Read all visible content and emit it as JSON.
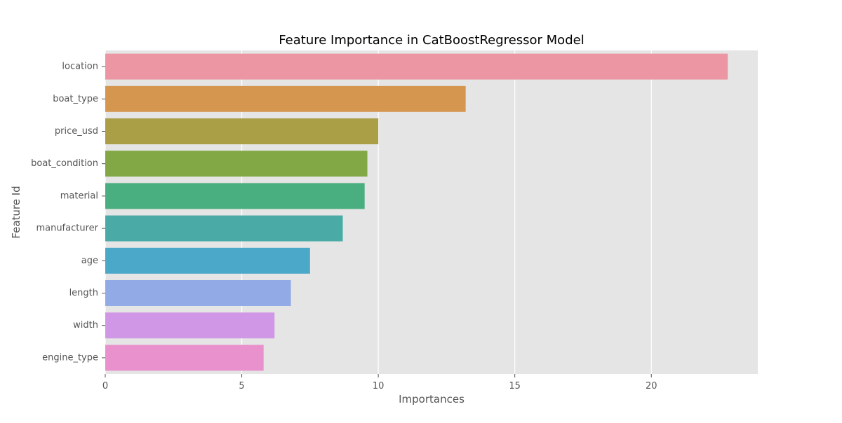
{
  "chart_data": {
    "type": "bar",
    "orientation": "horizontal",
    "title": "Feature Importance in CatBoostRegressor Model",
    "xlabel": "Importances",
    "ylabel": "Feature Id",
    "categories": [
      "location",
      "boat_type",
      "price_usd",
      "boat_condition",
      "material",
      "manufacturer",
      "age",
      "length",
      "width",
      "engine_type"
    ],
    "values": [
      22.8,
      13.2,
      10.0,
      9.6,
      9.5,
      8.7,
      7.5,
      6.8,
      6.2,
      5.8
    ],
    "colors": [
      "#EB96A2",
      "#D59650",
      "#AA9E47",
      "#81A844",
      "#4AAF80",
      "#4AABA6",
      "#4CA8C8",
      "#92AAE6",
      "#D097E6",
      "#E891CC"
    ],
    "xlim": [
      0,
      23.9
    ],
    "xticks": [
      0,
      5,
      10,
      15,
      20
    ],
    "xtick_labels": [
      "0",
      "5",
      "10",
      "15",
      "20"
    ],
    "grid": true,
    "background": "#E5E5E5"
  }
}
